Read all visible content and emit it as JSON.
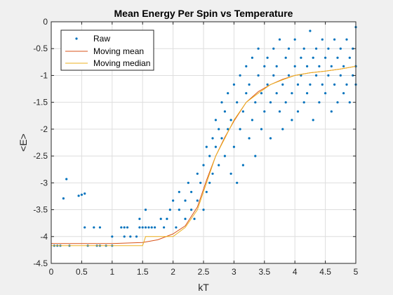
{
  "chart_data": {
    "type": "scatter",
    "title": "Mean Energy Per Spin vs Temperature",
    "xlabel": "kT",
    "ylabel": "<E>",
    "xlim": [
      0,
      5
    ],
    "ylim": [
      -4.5,
      0
    ],
    "xticks": [
      0,
      0.5,
      1,
      1.5,
      2,
      2.5,
      3,
      3.5,
      4,
      4.5,
      5
    ],
    "xtick_labels": [
      "0",
      "0.5",
      "1",
      "1.5",
      "2",
      "2.5",
      "3",
      "3.5",
      "4",
      "4.5",
      "5"
    ],
    "yticks": [
      -4.5,
      -4,
      -3.5,
      -3,
      -2.5,
      -2,
      -1.5,
      -1,
      -0.5,
      0
    ],
    "ytick_labels": [
      "-4.5",
      "-4",
      "-3.5",
      "-3",
      "-2.5",
      "-2",
      "-1.5",
      "-1",
      "-0.5",
      "0"
    ],
    "grid": true,
    "legend_position": "top-left",
    "colors": {
      "raw": "#0072BD",
      "mean": "#D95319",
      "median": "#EDB120"
    },
    "series": [
      {
        "name": "Raw",
        "style": "markers",
        "points": [
          [
            0.05,
            -4.17
          ],
          [
            0.1,
            -4.17
          ],
          [
            0.15,
            -4.17
          ],
          [
            0.2,
            -3.29
          ],
          [
            0.25,
            -2.93
          ],
          [
            0.3,
            -4.17
          ],
          [
            0.45,
            -3.24
          ],
          [
            0.5,
            -3.22
          ],
          [
            0.55,
            -3.2
          ],
          [
            0.6,
            -4.17
          ],
          [
            0.75,
            -4.17
          ],
          [
            0.8,
            -4.17
          ],
          [
            0.9,
            -4.17
          ],
          [
            1.0,
            -4.17
          ],
          [
            0.55,
            -3.83
          ],
          [
            0.7,
            -3.83
          ],
          [
            0.8,
            -3.83
          ],
          [
            1.15,
            -3.83
          ],
          [
            1.2,
            -3.83
          ],
          [
            1.25,
            -3.83
          ],
          [
            1.45,
            -3.83
          ],
          [
            1.5,
            -3.83
          ],
          [
            1.55,
            -3.83
          ],
          [
            1.0,
            -4.0
          ],
          [
            1.2,
            -4.0
          ],
          [
            1.3,
            -4.0
          ],
          [
            1.4,
            -4.0
          ],
          [
            1.45,
            -3.67
          ],
          [
            1.55,
            -3.5
          ],
          [
            1.6,
            -3.83
          ],
          [
            1.65,
            -3.83
          ],
          [
            1.7,
            -3.83
          ],
          [
            1.8,
            -3.67
          ],
          [
            1.85,
            -3.83
          ],
          [
            1.9,
            -3.67
          ],
          [
            1.95,
            -3.5
          ],
          [
            2.0,
            -3.33
          ],
          [
            2.05,
            -3.83
          ],
          [
            2.1,
            -3.5
          ],
          [
            2.1,
            -3.17
          ],
          [
            2.2,
            -3.67
          ],
          [
            2.2,
            -3.33
          ],
          [
            2.25,
            -3.0
          ],
          [
            2.3,
            -3.5
          ],
          [
            2.3,
            -3.17
          ],
          [
            2.35,
            -3.67
          ],
          [
            2.4,
            -3.33
          ],
          [
            2.4,
            -2.83
          ],
          [
            2.45,
            -3.0
          ],
          [
            2.5,
            -3.5
          ],
          [
            2.5,
            -2.67
          ],
          [
            2.55,
            -3.17
          ],
          [
            2.55,
            -2.33
          ],
          [
            2.6,
            -2.5
          ],
          [
            2.6,
            -3.0
          ],
          [
            2.65,
            -2.17
          ],
          [
            2.65,
            -2.83
          ],
          [
            2.7,
            -1.83
          ],
          [
            2.7,
            -2.33
          ],
          [
            2.75,
            -2.67
          ],
          [
            2.75,
            -2.0
          ],
          [
            2.8,
            -1.5
          ],
          [
            2.8,
            -2.17
          ],
          [
            2.85,
            -2.5
          ],
          [
            2.85,
            -1.67
          ],
          [
            2.9,
            -2.0
          ],
          [
            2.9,
            -1.33
          ],
          [
            2.95,
            -2.83
          ],
          [
            2.95,
            -1.83
          ],
          [
            3.0,
            -1.17
          ],
          [
            3.0,
            -2.33
          ],
          [
            3.05,
            -1.5
          ],
          [
            3.05,
            -3.0
          ],
          [
            3.1,
            -1.0
          ],
          [
            3.1,
            -2.0
          ],
          [
            3.15,
            -1.67
          ],
          [
            3.15,
            -2.67
          ],
          [
            3.2,
            -1.33
          ],
          [
            3.2,
            -0.83
          ],
          [
            3.25,
            -2.17
          ],
          [
            3.25,
            -1.17
          ],
          [
            3.3,
            -1.83
          ],
          [
            3.3,
            -0.67
          ],
          [
            3.35,
            -1.5
          ],
          [
            3.35,
            -2.5
          ],
          [
            3.4,
            -1.0
          ],
          [
            3.4,
            -0.5
          ],
          [
            3.45,
            -1.33
          ],
          [
            3.45,
            -2.0
          ],
          [
            3.5,
            -0.83
          ],
          [
            3.5,
            -1.67
          ],
          [
            3.55,
            -1.17
          ],
          [
            3.55,
            -0.67
          ],
          [
            3.6,
            -1.5
          ],
          [
            3.6,
            -2.17
          ],
          [
            3.65,
            -0.5
          ],
          [
            3.65,
            -1.0
          ],
          [
            3.7,
            -1.33
          ],
          [
            3.7,
            -0.83
          ],
          [
            3.75,
            -1.67
          ],
          [
            3.75,
            -0.33
          ],
          [
            3.8,
            -1.17
          ],
          [
            3.8,
            -2.0
          ],
          [
            3.85,
            -0.67
          ],
          [
            3.85,
            -1.5
          ],
          [
            3.9,
            -1.0
          ],
          [
            3.9,
            -0.5
          ],
          [
            3.95,
            -1.33
          ],
          [
            3.95,
            -1.83
          ],
          [
            4.0,
            -0.83
          ],
          [
            4.0,
            -0.33
          ],
          [
            4.05,
            -1.17
          ],
          [
            4.05,
            -1.67
          ],
          [
            4.1,
            -0.67
          ],
          [
            4.1,
            -1.0
          ],
          [
            4.15,
            -0.5
          ],
          [
            4.15,
            -1.5
          ],
          [
            4.2,
            -1.33
          ],
          [
            4.2,
            -0.83
          ],
          [
            4.25,
            -0.17
          ],
          [
            4.25,
            -1.17
          ],
          [
            4.3,
            -0.67
          ],
          [
            4.3,
            -1.83
          ],
          [
            4.35,
            -1.0
          ],
          [
            4.35,
            -0.5
          ],
          [
            4.4,
            -1.5
          ],
          [
            4.4,
            -0.83
          ],
          [
            4.45,
            -0.33
          ],
          [
            4.45,
            -1.17
          ],
          [
            4.5,
            -0.67
          ],
          [
            4.5,
            -1.33
          ],
          [
            4.55,
            -1.0
          ],
          [
            4.55,
            -0.5
          ],
          [
            4.6,
            -0.83
          ],
          [
            4.6,
            -1.67
          ],
          [
            4.65,
            -0.33
          ],
          [
            4.65,
            -1.17
          ],
          [
            4.7,
            -0.67
          ],
          [
            4.7,
            -1.5
          ],
          [
            4.75,
            -0.5
          ],
          [
            4.75,
            -1.0
          ],
          [
            4.8,
            -0.83
          ],
          [
            4.8,
            -1.33
          ],
          [
            4.85,
            -0.33
          ],
          [
            4.85,
            -1.17
          ],
          [
            4.9,
            -0.67
          ],
          [
            4.9,
            -1.5
          ],
          [
            4.95,
            -0.5
          ],
          [
            4.95,
            -1.0
          ],
          [
            5.0,
            -0.1
          ],
          [
            5.0,
            -0.83
          ],
          [
            5.0,
            -1.17
          ]
        ]
      },
      {
        "name": "Moving mean",
        "style": "line",
        "points": [
          [
            0.0,
            -4.13
          ],
          [
            0.5,
            -4.13
          ],
          [
            1.0,
            -4.13
          ],
          [
            1.5,
            -4.11
          ],
          [
            1.75,
            -4.06
          ],
          [
            2.0,
            -3.95
          ],
          [
            2.2,
            -3.8
          ],
          [
            2.4,
            -3.45
          ],
          [
            2.55,
            -2.95
          ],
          [
            2.7,
            -2.5
          ],
          [
            2.85,
            -2.15
          ],
          [
            3.0,
            -1.85
          ],
          [
            3.2,
            -1.5
          ],
          [
            3.4,
            -1.3
          ],
          [
            3.6,
            -1.17
          ],
          [
            3.8,
            -1.07
          ],
          [
            4.0,
            -1.0
          ],
          [
            4.25,
            -0.95
          ],
          [
            4.5,
            -0.92
          ],
          [
            4.75,
            -0.88
          ],
          [
            5.0,
            -0.83
          ]
        ]
      },
      {
        "name": "Moving median",
        "style": "line",
        "points": [
          [
            0.0,
            -4.17
          ],
          [
            1.0,
            -4.17
          ],
          [
            1.5,
            -4.17
          ],
          [
            1.55,
            -4.0
          ],
          [
            2.0,
            -4.0
          ],
          [
            2.2,
            -3.83
          ],
          [
            2.4,
            -3.5
          ],
          [
            2.55,
            -3.0
          ],
          [
            2.7,
            -2.5
          ],
          [
            2.85,
            -2.17
          ],
          [
            3.0,
            -1.83
          ],
          [
            3.2,
            -1.5
          ],
          [
            3.4,
            -1.33
          ],
          [
            3.6,
            -1.17
          ],
          [
            3.8,
            -1.08
          ],
          [
            4.0,
            -1.0
          ],
          [
            4.25,
            -0.95
          ],
          [
            4.5,
            -0.92
          ],
          [
            4.75,
            -0.88
          ],
          [
            5.0,
            -0.83
          ]
        ]
      }
    ]
  }
}
